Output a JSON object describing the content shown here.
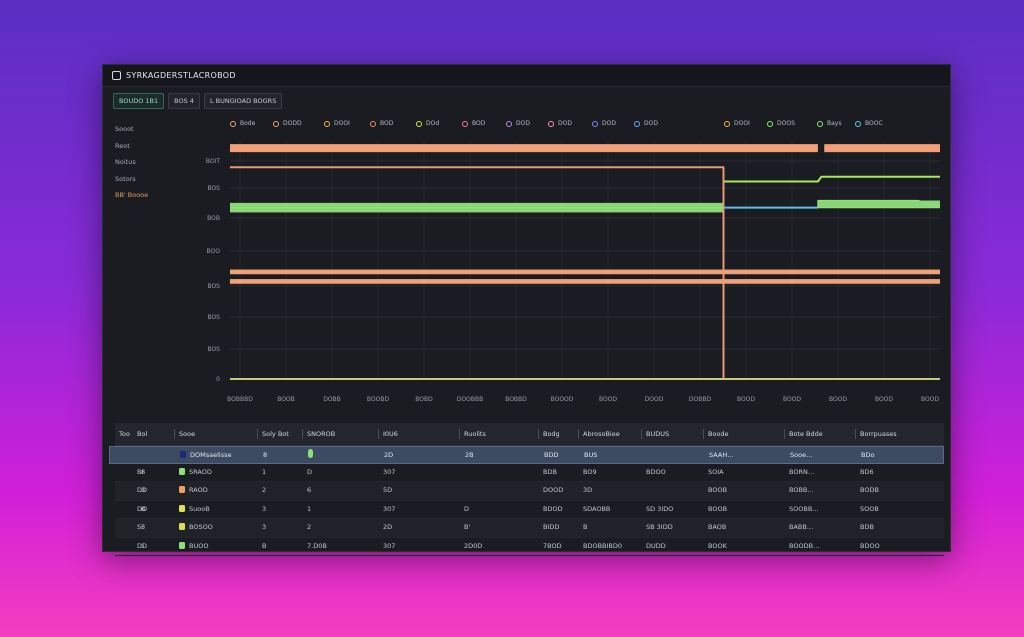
{
  "window": {
    "title": "SYRKAGDERSTLACROBOD"
  },
  "toolbar": {
    "buttons": [
      "BOUDO 1B1",
      "BOS 4",
      "L BUNGIOAD BOGRS"
    ]
  },
  "sidebar": {
    "items": [
      "Sooot",
      "Reot",
      "Noitus",
      "Sotors",
      "BB' Boooe"
    ]
  },
  "legend": [
    {
      "label": "Bode",
      "color": "#f5a07a"
    },
    {
      "label": "DODD",
      "color": "#f5a07a"
    },
    {
      "label": "DOOI",
      "color": "#f7b04d"
    },
    {
      "label": "BOD",
      "color": "#f08a72"
    },
    {
      "label": "DOd",
      "color": "#d6e84a"
    },
    {
      "label": "BOD",
      "color": "#ff7a8a"
    },
    {
      "label": "DOD",
      "color": "#b78af0"
    },
    {
      "label": "DOD",
      "color": "#ff8fb3"
    },
    {
      "label": "DOD",
      "color": "#7a8cff"
    },
    {
      "label": "DOD",
      "color": "#6aa8ff"
    },
    {
      "label": "DOOI",
      "color": "#f7b04d"
    },
    {
      "label": "DOOS",
      "color": "#8bea6a"
    },
    {
      "label": "Bays",
      "color": "#8bea6a"
    },
    {
      "label": "BOOC",
      "color": "#5ac8e8"
    }
  ],
  "chart_data": {
    "type": "line",
    "y_tick_labels": [
      "BOIT",
      "BOS",
      "BOB",
      "BOO",
      "BOS",
      "BOS",
      "BOS",
      "0"
    ],
    "x_tick_labels": [
      "BOBBBD",
      "BOOB",
      "DOBB",
      "BOOBD",
      "BOBD",
      "DOOBBB",
      "BOBBD",
      "BOOOD",
      "BOOD",
      "DOOD",
      "DOBBD",
      "BOOD",
      "BOOD",
      "BOOD",
      "BOOD",
      "BOOD"
    ],
    "grid": true,
    "x_range": [
      0,
      100
    ],
    "y_range": [
      0,
      100
    ],
    "divider_x": 69.5,
    "series": [
      {
        "color": "#f3a079",
        "points": [
          [
            0,
            97
          ],
          [
            82.8,
            97
          ],
          [
            82.8,
            null
          ],
          [
            83.7,
            97
          ],
          [
            100,
            97
          ]
        ]
      },
      {
        "color": "#e89a74",
        "points": [
          [
            0,
            89
          ],
          [
            69.5,
            89
          ],
          [
            69.5,
            0
          ]
        ]
      },
      {
        "color": "#8fe07a",
        "points": [
          [
            0,
            72
          ],
          [
            100,
            72
          ]
        ],
        "band": [
          70,
          74
        ],
        "band_end": 69.5
      },
      {
        "color": "#a8e85a",
        "points": [
          [
            69.5,
            83
          ],
          [
            82.8,
            83
          ],
          [
            83.3,
            85
          ],
          [
            100,
            85
          ]
        ]
      },
      {
        "color": "#5cc0e6",
        "points": [
          [
            69.5,
            72
          ],
          [
            82.8,
            72
          ]
        ]
      },
      {
        "color": "#8fe07a",
        "points": [
          [
            82.8,
            72
          ],
          [
            82.8,
            75
          ],
          [
            97,
            75
          ],
          [
            98.5,
            73
          ],
          [
            100,
            73
          ]
        ],
        "band": [
          72,
          75
        ]
      },
      {
        "color": "#f4a57c",
        "points": [
          [
            0,
            45
          ],
          [
            100,
            45
          ]
        ],
        "band": [
          44,
          46
        ]
      },
      {
        "color": "#f4a57c",
        "points": [
          [
            0,
            41
          ],
          [
            100,
            41
          ]
        ],
        "band": [
          40,
          42
        ]
      },
      {
        "color": "#c8cc7a",
        "points": [
          [
            0,
            0
          ],
          [
            100,
            0
          ]
        ]
      }
    ]
  },
  "table": {
    "headers": [
      "Too",
      "Bol",
      "Sooe",
      "Soly Bot",
      "SNOROB",
      "I0U6",
      "Ruolits",
      "Bodg",
      "AbrosoBiee",
      "BUDUS",
      "Boode",
      "Bote Bdde",
      "Borrpuases"
    ],
    "rows": [
      {
        "cells": [
          "",
          "",
          "DOMsaelisse",
          "8",
          "",
          "2D",
          "2B",
          "BDD",
          "BUS",
          "",
          "SAAH…",
          "Sooe…",
          "BDo"
        ],
        "swatch": "#1a2a7a",
        "pill": "#8fe07a",
        "selected": true
      },
      {
        "cells": [
          "8",
          "BI",
          "SRAOD",
          "1",
          "D",
          "307",
          "",
          "BDB",
          "BO9",
          "BDOO",
          "SOIA",
          "BORN…",
          "BD6"
        ],
        "swatch": "#8fe07a"
      },
      {
        "cells": [
          "3",
          "DD",
          "RAOD",
          "2",
          "6",
          "5D",
          "",
          "DOOD",
          "3D",
          "",
          "BOOB",
          "BOBB…",
          "BODB"
        ],
        "swatch": "#f0a060"
      },
      {
        "cells": [
          "B",
          "DO",
          "SuooB",
          "3",
          "1",
          "307",
          "D",
          "BDOD",
          "SDAOBB",
          "SD 3IDO",
          "BOOB",
          "SOOBB…",
          "SOOB"
        ],
        "swatch": "#e0e050"
      },
      {
        "cells": [
          "3",
          "SI",
          "BOSOO",
          "3",
          "2",
          "2D",
          "B'",
          "BIDD",
          "B",
          "SB 3IDD",
          "BAOB",
          "BABB…",
          "BDB"
        ],
        "swatch": "#d8e050"
      },
      {
        "cells": [
          "1",
          "DD",
          "BUOO",
          "B",
          "7.D0B",
          "307",
          "2D0D",
          "7BOD",
          "BDOBBIBD0",
          "DUDD",
          "BOOK",
          "BOODB…",
          "BDOO"
        ],
        "swatch": "#8fe07a"
      }
    ]
  }
}
